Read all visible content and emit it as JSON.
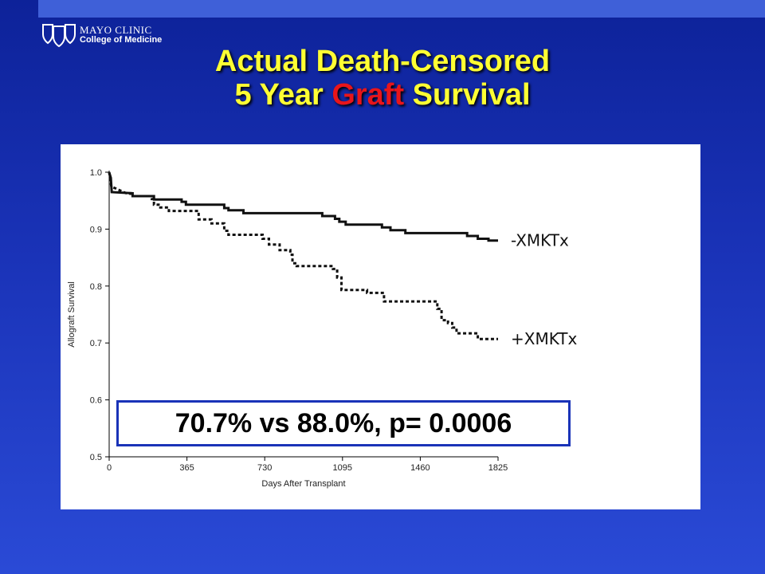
{
  "logo": {
    "line1": "MAYO CLINIC",
    "line2": "College of Medicine",
    "icon": "mayo-shields-icon"
  },
  "title": {
    "line1": "Actual Death-Censored",
    "line2_pre": "5 Year ",
    "line2_highlight": "Graft",
    "line2_post": " Survival"
  },
  "colors": {
    "title": "#ffff33",
    "highlight": "#e8151b",
    "background": "#1a33b8",
    "stat_border": "#1a33b8"
  },
  "stat_text": "70.7% vs 88.0%, p= 0.0006",
  "chart_data": {
    "type": "line",
    "xlabel": "Days After Transplant",
    "ylabel": "Allograft Survival",
    "xlim": [
      0,
      1825
    ],
    "ylim": [
      0.5,
      1.0
    ],
    "x_ticks": [
      0,
      365,
      730,
      1095,
      1460,
      1825
    ],
    "y_ticks": [
      0.5,
      0.6,
      0.7,
      0.8,
      0.9,
      1.0
    ],
    "grid": false,
    "legend": "direct labels right of series ends",
    "series": [
      {
        "name": "-XMKTx",
        "style": "solid",
        "points": [
          [
            0,
            1.0
          ],
          [
            8,
            0.99
          ],
          [
            12,
            0.965
          ],
          [
            110,
            0.963
          ],
          [
            110,
            0.958
          ],
          [
            210,
            0.958
          ],
          [
            210,
            0.952
          ],
          [
            340,
            0.952
          ],
          [
            340,
            0.948
          ],
          [
            360,
            0.948
          ],
          [
            360,
            0.943
          ],
          [
            540,
            0.943
          ],
          [
            540,
            0.937
          ],
          [
            560,
            0.937
          ],
          [
            560,
            0.933
          ],
          [
            630,
            0.933
          ],
          [
            630,
            0.928
          ],
          [
            1000,
            0.928
          ],
          [
            1000,
            0.923
          ],
          [
            1060,
            0.923
          ],
          [
            1060,
            0.918
          ],
          [
            1080,
            0.918
          ],
          [
            1080,
            0.913
          ],
          [
            1110,
            0.913
          ],
          [
            1110,
            0.908
          ],
          [
            1280,
            0.908
          ],
          [
            1280,
            0.903
          ],
          [
            1320,
            0.903
          ],
          [
            1320,
            0.898
          ],
          [
            1390,
            0.898
          ],
          [
            1390,
            0.893
          ],
          [
            1680,
            0.893
          ],
          [
            1680,
            0.888
          ],
          [
            1730,
            0.888
          ],
          [
            1730,
            0.883
          ],
          [
            1780,
            0.883
          ],
          [
            1780,
            0.88
          ],
          [
            1825,
            0.88
          ]
        ]
      },
      {
        "name": "+XMKTx",
        "style": "dotted",
        "points": [
          [
            0,
            1.0
          ],
          [
            10,
            0.975
          ],
          [
            50,
            0.968
          ],
          [
            80,
            0.963
          ],
          [
            100,
            0.963
          ],
          [
            100,
            0.958
          ],
          [
            200,
            0.958
          ],
          [
            200,
            0.953
          ],
          [
            210,
            0.953
          ],
          [
            210,
            0.948
          ],
          [
            210,
            0.943
          ],
          [
            240,
            0.943
          ],
          [
            240,
            0.938
          ],
          [
            280,
            0.938
          ],
          [
            280,
            0.932
          ],
          [
            420,
            0.932
          ],
          [
            420,
            0.917
          ],
          [
            480,
            0.917
          ],
          [
            480,
            0.91
          ],
          [
            540,
            0.91
          ],
          [
            540,
            0.897
          ],
          [
            560,
            0.897
          ],
          [
            560,
            0.89
          ],
          [
            720,
            0.89
          ],
          [
            720,
            0.883
          ],
          [
            750,
            0.883
          ],
          [
            750,
            0.873
          ],
          [
            800,
            0.873
          ],
          [
            800,
            0.863
          ],
          [
            850,
            0.863
          ],
          [
            850,
            0.855
          ],
          [
            860,
            0.855
          ],
          [
            860,
            0.84
          ],
          [
            880,
            0.84
          ],
          [
            880,
            0.835
          ],
          [
            1050,
            0.835
          ],
          [
            1050,
            0.83
          ],
          [
            1070,
            0.83
          ],
          [
            1070,
            0.815
          ],
          [
            1090,
            0.815
          ],
          [
            1090,
            0.793
          ],
          [
            1210,
            0.793
          ],
          [
            1210,
            0.788
          ],
          [
            1290,
            0.788
          ],
          [
            1290,
            0.773
          ],
          [
            1540,
            0.773
          ],
          [
            1540,
            0.76
          ],
          [
            1560,
            0.76
          ],
          [
            1560,
            0.74
          ],
          [
            1590,
            0.74
          ],
          [
            1590,
            0.735
          ],
          [
            1610,
            0.735
          ],
          [
            1610,
            0.727
          ],
          [
            1630,
            0.727
          ],
          [
            1630,
            0.717
          ],
          [
            1730,
            0.717
          ],
          [
            1730,
            0.707
          ],
          [
            1825,
            0.707
          ]
        ]
      }
    ]
  }
}
